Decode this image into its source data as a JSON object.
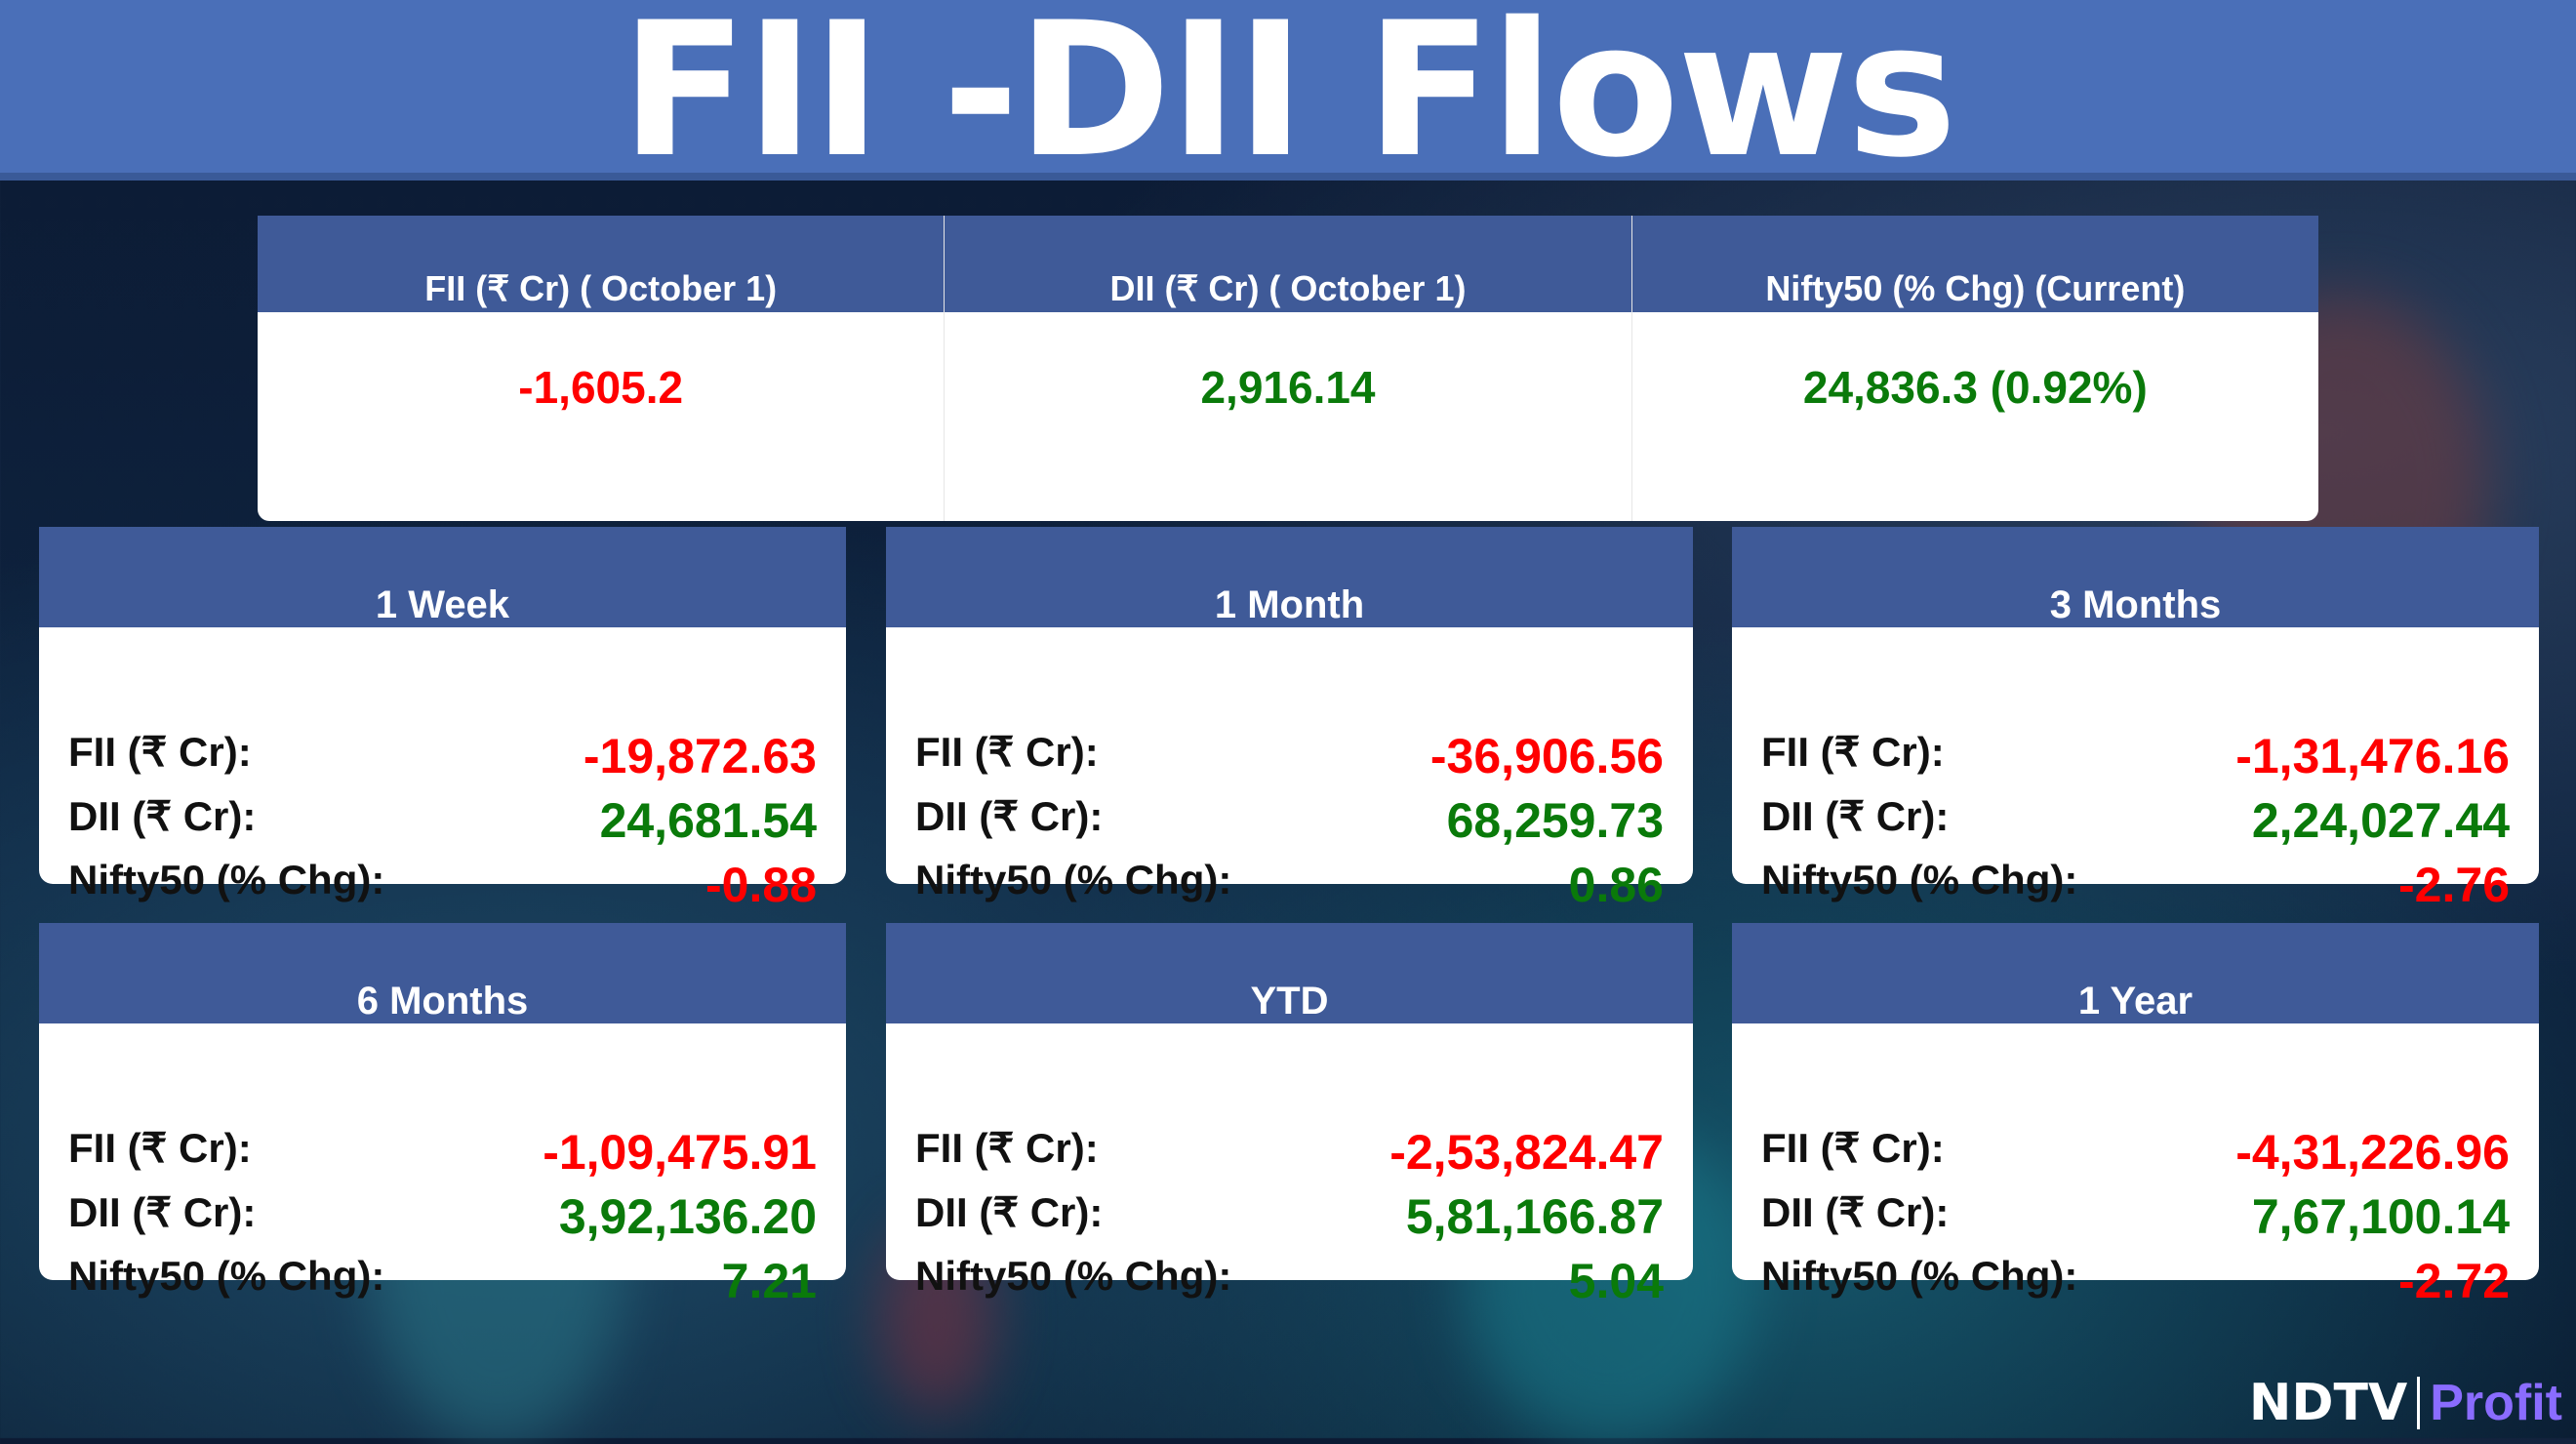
{
  "title": "FII -DII Flows",
  "colors": {
    "negative": "#ff0000",
    "positive": "#0a7a0a",
    "header": "#3f5a98"
  },
  "current": {
    "columns": [
      {
        "header": "FII (₹ Cr) ( October 1)",
        "value": "-1,605.2",
        "sign": "neg"
      },
      {
        "header": "DII (₹ Cr) ( October 1)",
        "value": "2,916.14",
        "sign": "pos"
      },
      {
        "header": "Nifty50 (% Chg) (Current)",
        "value": "24,836.3 (0.92%)",
        "sign": "pos"
      }
    ]
  },
  "labels": {
    "fii": "FII (₹ Cr):",
    "dii": "DII (₹ Cr):",
    "nifty": "Nifty50 (% Chg):"
  },
  "periods": [
    {
      "title": "1 Week",
      "fii": "-19,872.63",
      "dii": "24,681.54",
      "nifty": "-0.88",
      "nifty_sign": "neg"
    },
    {
      "title": "1 Month",
      "fii": "-36,906.56",
      "dii": "68,259.73",
      "nifty": "0.86",
      "nifty_sign": "pos"
    },
    {
      "title": "3 Months",
      "fii": "-1,31,476.16",
      "dii": "2,24,027.44",
      "nifty": "-2.76",
      "nifty_sign": "neg"
    },
    {
      "title": "6 Months",
      "fii": "-1,09,475.91",
      "dii": "3,92,136.20",
      "nifty": "7.21",
      "nifty_sign": "pos"
    },
    {
      "title": "YTD",
      "fii": "-2,53,824.47",
      "dii": "5,81,166.87",
      "nifty": "5.04",
      "nifty_sign": "pos"
    },
    {
      "title": "1 Year",
      "fii": "-4,31,226.96",
      "dii": "7,67,100.14",
      "nifty": "-2.72",
      "nifty_sign": "neg"
    }
  ],
  "logo": {
    "brand": "NDTV",
    "product": "Profit"
  }
}
